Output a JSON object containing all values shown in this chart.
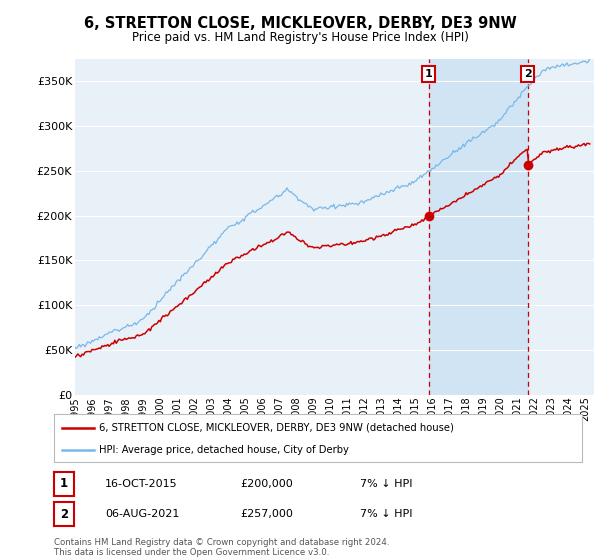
{
  "title": "6, STRETTON CLOSE, MICKLEOVER, DERBY, DE3 9NW",
  "subtitle": "Price paid vs. HM Land Registry's House Price Index (HPI)",
  "ylabel_ticks": [
    "£0",
    "£50K",
    "£100K",
    "£150K",
    "£200K",
    "£250K",
    "£300K",
    "£350K"
  ],
  "ytick_values": [
    0,
    50000,
    100000,
    150000,
    200000,
    250000,
    300000,
    350000
  ],
  "ylim": [
    0,
    375000
  ],
  "xlim_start": 1995.0,
  "xlim_end": 2025.5,
  "hpi_color": "#7ab8e8",
  "price_color": "#cc0000",
  "marker1_x": 2015.79,
  "marker1_y": 200000,
  "marker2_x": 2021.6,
  "marker2_y": 257000,
  "legend_label1": "6, STRETTON CLOSE, MICKLEOVER, DERBY, DE3 9NW (detached house)",
  "legend_label2": "HPI: Average price, detached house, City of Derby",
  "table_row1": [
    "1",
    "16-OCT-2015",
    "£200,000",
    "7% ↓ HPI"
  ],
  "table_row2": [
    "2",
    "06-AUG-2021",
    "£257,000",
    "7% ↓ HPI"
  ],
  "footer": "Contains HM Land Registry data © Crown copyright and database right 2024.\nThis data is licensed under the Open Government Licence v3.0.",
  "bg_color": "#ffffff",
  "plot_bg_color": "#e8f0f8",
  "grid_color": "#ffffff",
  "vline_color": "#cc0000",
  "shade_color": "#d0e4f4"
}
